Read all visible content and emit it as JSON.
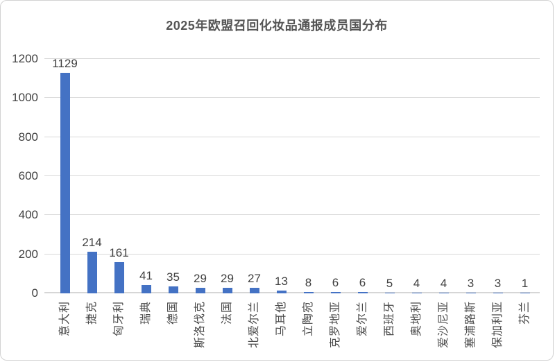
{
  "chart_data": {
    "type": "bar",
    "title": "2025年欧盟召回化妆品通报成员国分布",
    "categories": [
      "意大利",
      "捷克",
      "匈牙利",
      "瑞典",
      "德国",
      "斯洛伐克",
      "法国",
      "北爱尔兰",
      "马耳他",
      "立陶宛",
      "克罗地亚",
      "爱尔兰",
      "西班牙",
      "奥地利",
      "爱沙尼亚",
      "塞浦路斯",
      "保加利亚",
      "芬兰"
    ],
    "values": [
      1129,
      214,
      161,
      41,
      35,
      29,
      29,
      27,
      13,
      8,
      6,
      6,
      5,
      4,
      4,
      3,
      3,
      1
    ],
    "data_labels_shown": true,
    "xlabel": "",
    "ylabel": "",
    "ylim": [
      0,
      1200
    ],
    "yticks": [
      0,
      200,
      400,
      600,
      800,
      1000,
      1200
    ],
    "grid": "horizontal",
    "legend": "none",
    "colors": {
      "bar": "#4472c4",
      "gridline": "#d9d9d9",
      "axis_line": "#d6d6d6",
      "title_text": "#555555",
      "axis_text": "#404040",
      "category_text": "#4a4a4a",
      "frame_border": "#d2d2d2",
      "background": "#ffffff"
    }
  }
}
